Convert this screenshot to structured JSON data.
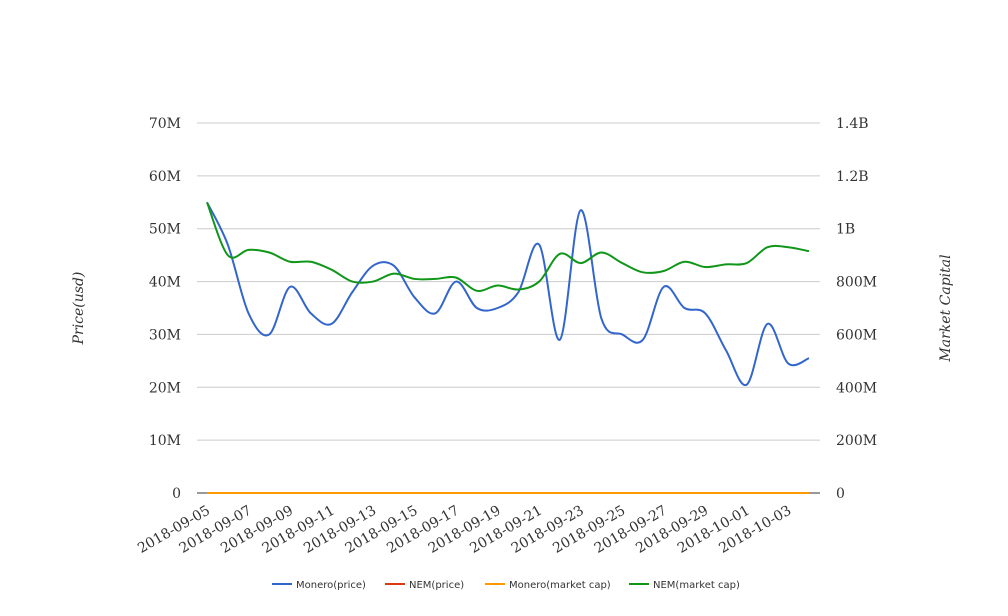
{
  "chart_data": {
    "type": "line",
    "title": "",
    "ylabel": "Price(usd)",
    "y2label": "Market Capital",
    "ylim": [
      0,
      70000000
    ],
    "y2lim": [
      0,
      1400000000
    ],
    "yticks": [
      "0",
      "10M",
      "20M",
      "30M",
      "40M",
      "50M",
      "60M",
      "70M"
    ],
    "y2ticks": [
      "0",
      "200M",
      "400M",
      "600M",
      "800M",
      "1B",
      "1.2B",
      "1.4B"
    ],
    "grid": true,
    "legend_position": "bottom",
    "x": [
      "2018-09-05",
      "2018-09-06",
      "2018-09-07",
      "2018-09-08",
      "2018-09-09",
      "2018-09-10",
      "2018-09-11",
      "2018-09-12",
      "2018-09-13",
      "2018-09-14",
      "2018-09-15",
      "2018-09-16",
      "2018-09-17",
      "2018-09-18",
      "2018-09-19",
      "2018-09-20",
      "2018-09-21",
      "2018-09-22",
      "2018-09-23",
      "2018-09-24",
      "2018-09-25",
      "2018-09-26",
      "2018-09-27",
      "2018-09-28",
      "2018-09-29",
      "2018-09-30",
      "2018-10-01",
      "2018-10-02",
      "2018-10-03",
      "2018-10-04"
    ],
    "x_tick_labels": [
      "2018-09-05",
      "2018-09-07",
      "2018-09-09",
      "2018-09-11",
      "2018-09-13",
      "2018-09-15",
      "2018-09-17",
      "2018-09-19",
      "2018-09-21",
      "2018-09-23",
      "2018-09-25",
      "2018-09-27",
      "2018-09-29",
      "2018-10-01",
      "2018-10-03"
    ],
    "series": [
      {
        "name": "Monero(price)",
        "axis": "left",
        "color": "#3366cc",
        "values": [
          55000000,
          47000000,
          34000000,
          30000000,
          39000000,
          34000000,
          32000000,
          38000000,
          43000000,
          43000000,
          37000000,
          34000000,
          40000000,
          35000000,
          35000000,
          38000000,
          47000000,
          29000000,
          53500000,
          33000000,
          30000000,
          29000000,
          39000000,
          35000000,
          34000000,
          27000000,
          20500000,
          32000000,
          24500000,
          25500000
        ]
      },
      {
        "name": "NEM(price)",
        "axis": "left",
        "color": "#dc3912",
        "values": [
          0,
          0,
          0,
          0,
          0,
          0,
          0,
          0,
          0,
          0,
          0,
          0,
          0,
          0,
          0,
          0,
          0,
          0,
          0,
          0,
          0,
          0,
          0,
          0,
          0,
          0,
          0,
          0,
          0,
          0
        ]
      },
      {
        "name": "Monero(market cap)",
        "axis": "right",
        "color": "#ff9900",
        "values": [
          0,
          0,
          0,
          0,
          0,
          0,
          0,
          0,
          0,
          0,
          0,
          0,
          0,
          0,
          0,
          0,
          0,
          0,
          0,
          0,
          0,
          0,
          0,
          0,
          0,
          0,
          0,
          0,
          0,
          0
        ]
      },
      {
        "name": "NEM(market cap)",
        "axis": "right",
        "color": "#109618",
        "values": [
          1100000000,
          900000000,
          920000000,
          910000000,
          875000000,
          875000000,
          845000000,
          800000000,
          800000000,
          830000000,
          810000000,
          810000000,
          815000000,
          765000000,
          785000000,
          770000000,
          800000000,
          905000000,
          870000000,
          910000000,
          870000000,
          835000000,
          840000000,
          875000000,
          855000000,
          865000000,
          870000000,
          930000000,
          930000000,
          915000000
        ]
      }
    ]
  }
}
